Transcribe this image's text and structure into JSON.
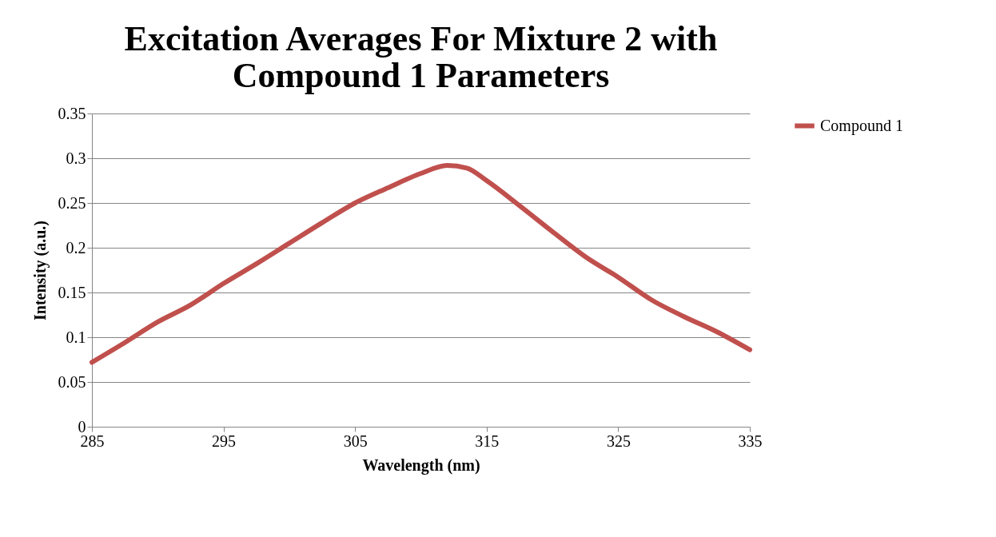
{
  "chart_data": {
    "type": "line",
    "title": "Excitation Averages For Mixture 2 with Compound 1 Parameters",
    "xlabel": "Wavelength (nm)",
    "ylabel": "Intensity (a.u.)",
    "x": [
      285,
      287.5,
      290,
      292.5,
      295,
      297.5,
      300,
      302.5,
      305,
      307.5,
      310,
      312,
      313.5,
      315,
      317.5,
      320,
      322.5,
      325,
      327.5,
      330,
      332.5,
      335
    ],
    "series": [
      {
        "name": "Compound 1",
        "color": "#c0504d",
        "values": [
          0.072,
          0.094,
          0.117,
          0.136,
          0.16,
          0.182,
          0.205,
          0.228,
          0.25,
          0.267,
          0.283,
          0.292,
          0.289,
          0.275,
          0.247,
          0.218,
          0.19,
          0.167,
          0.142,
          0.123,
          0.106,
          0.086
        ]
      }
    ],
    "xlim": [
      285,
      335
    ],
    "xticks": [
      285,
      295,
      305,
      315,
      325,
      335
    ],
    "ylim": [
      0,
      0.35
    ],
    "yticks": [
      0,
      0.05,
      0.1,
      0.15,
      0.2,
      0.25,
      0.3,
      0.35
    ],
    "grid": "y",
    "legend": "right",
    "marker": "none",
    "line_style": "solid"
  }
}
